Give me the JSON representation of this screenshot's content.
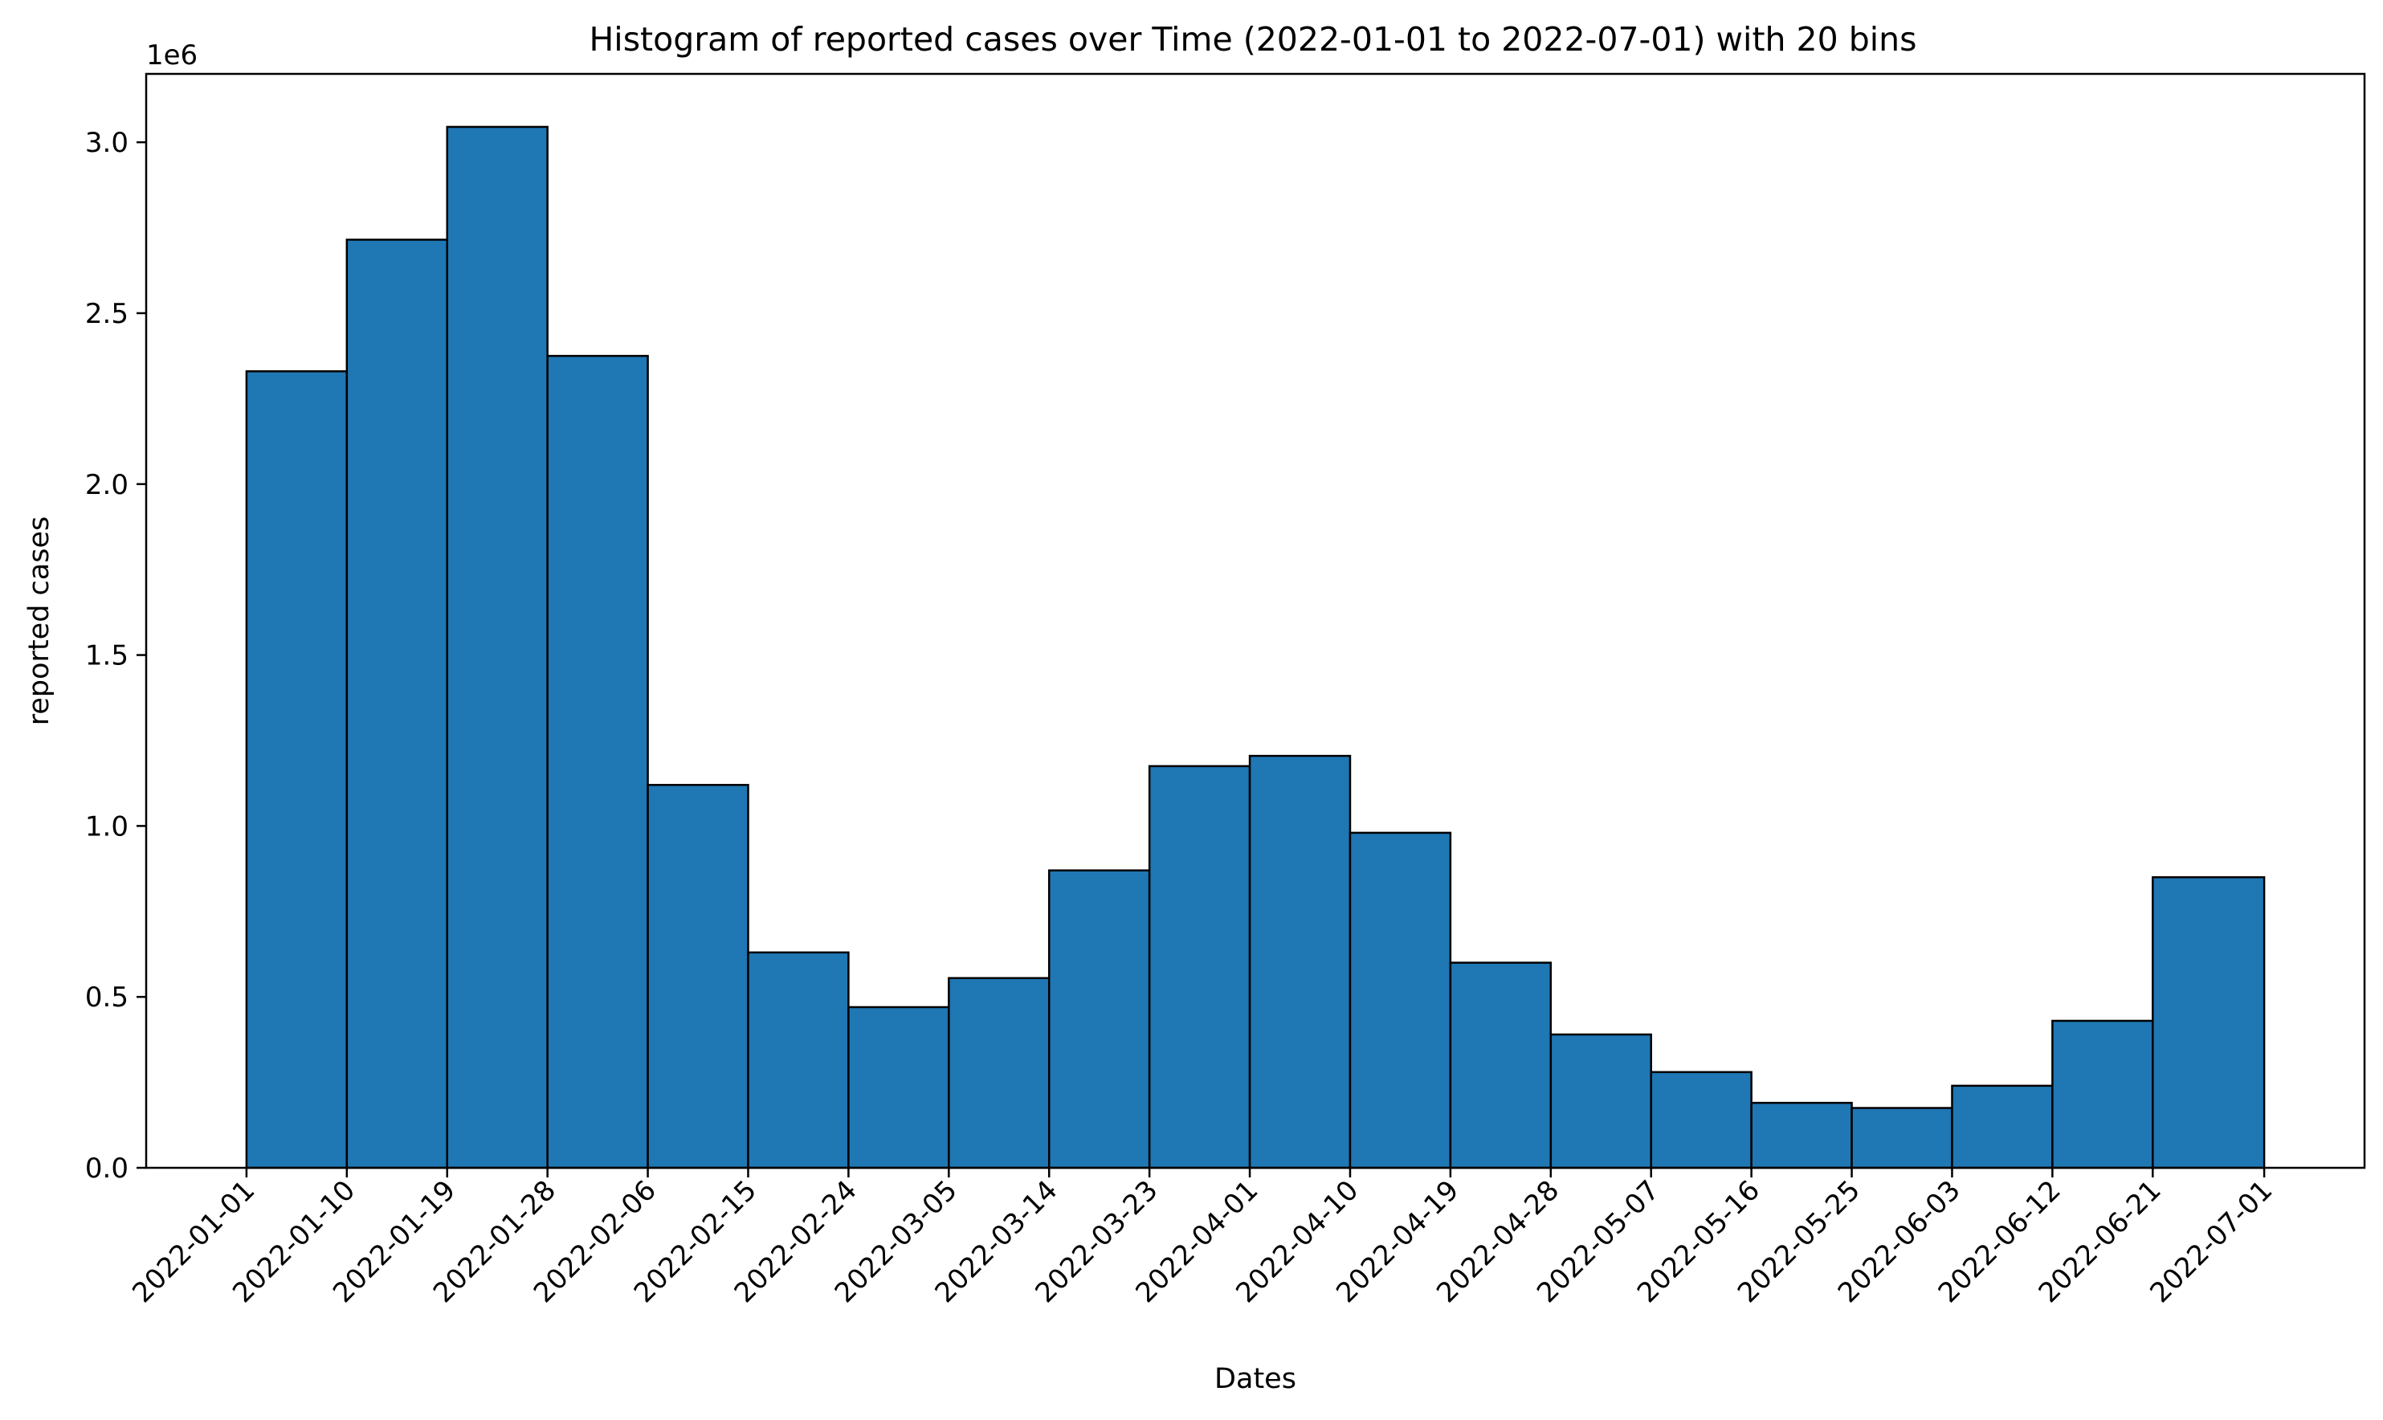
{
  "chart_data": {
    "type": "bar",
    "title": "Histogram of reported cases over Time (2022-01-01 to 2022-07-01) with 20 bins",
    "xlabel": "Dates",
    "ylabel": "reported cases",
    "y_offset_label": "1e6",
    "y_scale": 1000000,
    "ylim": [
      0,
      3200000
    ],
    "xlim": [
      "2021-12-23",
      "2022-07-10"
    ],
    "grid": false,
    "bar_color": "#1f77b4",
    "edge_color": "#000000",
    "bin_edges": [
      "2022-01-01",
      "2022-01-10",
      "2022-01-19",
      "2022-01-28",
      "2022-02-06",
      "2022-02-15",
      "2022-02-24",
      "2022-03-05",
      "2022-03-14",
      "2022-03-23",
      "2022-04-01",
      "2022-04-10",
      "2022-04-19",
      "2022-04-28",
      "2022-05-07",
      "2022-05-16",
      "2022-05-25",
      "2022-06-03",
      "2022-06-12",
      "2022-06-21",
      "2022-07-01"
    ],
    "values": [
      2330000,
      2715000,
      3045000,
      2375000,
      1120000,
      630000,
      470000,
      555000,
      870000,
      1175000,
      1205000,
      980000,
      600000,
      390000,
      280000,
      190000,
      175000,
      240000,
      430000,
      850000
    ],
    "yticks": [
      0,
      500000,
      1000000,
      1500000,
      2000000,
      2500000,
      3000000
    ],
    "ytick_labels": [
      "0.0",
      "0.5",
      "1.0",
      "1.5",
      "2.0",
      "2.5",
      "3.0"
    ]
  }
}
